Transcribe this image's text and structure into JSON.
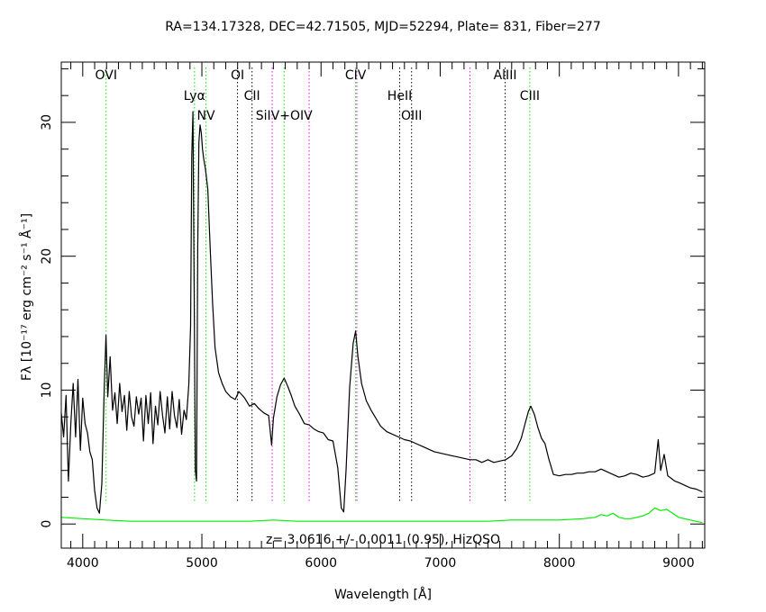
{
  "chart_data": {
    "type": "line",
    "title": "RA=134.17328, DEC=42.71505, MJD=52294, Plate=  831, Fiber=277",
    "xlabel": "Wavelength [Å]",
    "ylabel": "Fλ [10⁻¹⁷ erg cm⁻² s⁻¹ Å⁻¹]",
    "xlim": [
      3820,
      9220
    ],
    "ylim": [
      -1.8,
      34.5
    ],
    "x_ticks": [
      4000,
      5000,
      6000,
      7000,
      8000,
      9000
    ],
    "y_ticks": [
      0,
      10,
      20,
      30
    ],
    "annotation": "z=  3.0616 +/-  0.0011 (0.95), HizQSO",
    "grid": false,
    "series": [
      {
        "color": "#000000",
        "points": [
          [
            3820,
            8.3
          ],
          [
            3840,
            6.5
          ],
          [
            3860,
            9.6
          ],
          [
            3880,
            3.2
          ],
          [
            3900,
            7.5
          ],
          [
            3920,
            10.5
          ],
          [
            3940,
            6.5
          ],
          [
            3960,
            10.8
          ],
          [
            3980,
            5.5
          ],
          [
            4000,
            9.4
          ],
          [
            4020,
            7.5
          ],
          [
            4040,
            6.8
          ],
          [
            4060,
            5.4
          ],
          [
            4080,
            4.8
          ],
          [
            4100,
            2.5
          ],
          [
            4120,
            1.2
          ],
          [
            4140,
            0.8
          ],
          [
            4160,
            3.0
          ],
          [
            4180,
            10.0
          ],
          [
            4195,
            14.1
          ],
          [
            4210,
            9.5
          ],
          [
            4230,
            12.5
          ],
          [
            4250,
            8.5
          ],
          [
            4270,
            9.8
          ],
          [
            4290,
            7.5
          ],
          [
            4310,
            10.5
          ],
          [
            4330,
            8.4
          ],
          [
            4350,
            9.6
          ],
          [
            4370,
            7.0
          ],
          [
            4390,
            9.9
          ],
          [
            4410,
            8.0
          ],
          [
            4430,
            7.3
          ],
          [
            4450,
            9.5
          ],
          [
            4470,
            8.2
          ],
          [
            4490,
            9.4
          ],
          [
            4510,
            6.2
          ],
          [
            4530,
            9.6
          ],
          [
            4550,
            7.5
          ],
          [
            4570,
            9.8
          ],
          [
            4590,
            6.0
          ],
          [
            4610,
            8.8
          ],
          [
            4630,
            7.4
          ],
          [
            4650,
            9.9
          ],
          [
            4670,
            8.1
          ],
          [
            4690,
            6.8
          ],
          [
            4710,
            9.5
          ],
          [
            4730,
            7.1
          ],
          [
            4750,
            9.9
          ],
          [
            4770,
            8.1
          ],
          [
            4790,
            7.2
          ],
          [
            4810,
            9.3
          ],
          [
            4830,
            6.7
          ],
          [
            4850,
            8.5
          ],
          [
            4870,
            7.8
          ],
          [
            4890,
            10.4
          ],
          [
            4905,
            14.8
          ],
          [
            4915,
            27.5
          ],
          [
            4925,
            30.8
          ],
          [
            4935,
            18.0
          ],
          [
            4945,
            4.0
          ],
          [
            4955,
            3.2
          ],
          [
            4965,
            20.5
          ],
          [
            4975,
            28.5
          ],
          [
            4985,
            29.8
          ],
          [
            4995,
            29.2
          ],
          [
            5005,
            28.0
          ],
          [
            5015,
            27.3
          ],
          [
            5030,
            26.5
          ],
          [
            5050,
            25.0
          ],
          [
            5070,
            20.5
          ],
          [
            5090,
            16.5
          ],
          [
            5110,
            13.2
          ],
          [
            5140,
            11.3
          ],
          [
            5170,
            10.5
          ],
          [
            5200,
            9.9
          ],
          [
            5240,
            9.5
          ],
          [
            5280,
            9.3
          ],
          [
            5310,
            9.9
          ],
          [
            5330,
            9.7
          ],
          [
            5360,
            9.4
          ],
          [
            5400,
            8.8
          ],
          [
            5440,
            9.0
          ],
          [
            5480,
            8.6
          ],
          [
            5520,
            8.3
          ],
          [
            5560,
            8.1
          ],
          [
            5585,
            5.9
          ],
          [
            5600,
            7.9
          ],
          [
            5630,
            9.5
          ],
          [
            5660,
            10.4
          ],
          [
            5690,
            10.9
          ],
          [
            5720,
            10.3
          ],
          [
            5750,
            9.6
          ],
          [
            5780,
            8.8
          ],
          [
            5820,
            8.2
          ],
          [
            5860,
            7.5
          ],
          [
            5900,
            7.4
          ],
          [
            5940,
            7.1
          ],
          [
            5980,
            6.9
          ],
          [
            6020,
            6.8
          ],
          [
            6060,
            6.3
          ],
          [
            6100,
            6.2
          ],
          [
            6140,
            4.2
          ],
          [
            6170,
            1.2
          ],
          [
            6190,
            0.9
          ],
          [
            6210,
            4.0
          ],
          [
            6240,
            10.2
          ],
          [
            6270,
            13.5
          ],
          [
            6290,
            14.4
          ],
          [
            6310,
            12.5
          ],
          [
            6340,
            10.5
          ],
          [
            6380,
            9.2
          ],
          [
            6420,
            8.5
          ],
          [
            6460,
            7.9
          ],
          [
            6500,
            7.3
          ],
          [
            6550,
            6.9
          ],
          [
            6600,
            6.7
          ],
          [
            6650,
            6.5
          ],
          [
            6700,
            6.3
          ],
          [
            6750,
            6.2
          ],
          [
            6800,
            6.0
          ],
          [
            6850,
            5.8
          ],
          [
            6900,
            5.6
          ],
          [
            6950,
            5.4
          ],
          [
            7000,
            5.3
          ],
          [
            7050,
            5.2
          ],
          [
            7100,
            5.1
          ],
          [
            7150,
            5.0
          ],
          [
            7200,
            4.9
          ],
          [
            7250,
            4.8
          ],
          [
            7300,
            4.8
          ],
          [
            7350,
            4.6
          ],
          [
            7400,
            4.8
          ],
          [
            7450,
            4.6
          ],
          [
            7500,
            4.7
          ],
          [
            7550,
            4.8
          ],
          [
            7600,
            5.1
          ],
          [
            7640,
            5.6
          ],
          [
            7680,
            6.4
          ],
          [
            7710,
            7.4
          ],
          [
            7740,
            8.4
          ],
          [
            7760,
            8.8
          ],
          [
            7790,
            8.2
          ],
          [
            7820,
            7.2
          ],
          [
            7850,
            6.4
          ],
          [
            7880,
            6.0
          ],
          [
            7910,
            4.9
          ],
          [
            7950,
            3.7
          ],
          [
            8000,
            3.6
          ],
          [
            8050,
            3.7
          ],
          [
            8100,
            3.7
          ],
          [
            8150,
            3.8
          ],
          [
            8200,
            3.8
          ],
          [
            8250,
            3.9
          ],
          [
            8300,
            3.9
          ],
          [
            8350,
            4.1
          ],
          [
            8400,
            3.9
          ],
          [
            8450,
            3.7
          ],
          [
            8500,
            3.5
          ],
          [
            8550,
            3.6
          ],
          [
            8600,
            3.8
          ],
          [
            8650,
            3.7
          ],
          [
            8700,
            3.5
          ],
          [
            8750,
            3.6
          ],
          [
            8800,
            3.8
          ],
          [
            8830,
            6.3
          ],
          [
            8850,
            4.0
          ],
          [
            8880,
            5.2
          ],
          [
            8910,
            3.6
          ],
          [
            8940,
            3.4
          ],
          [
            8970,
            3.2
          ],
          [
            9000,
            3.1
          ],
          [
            9050,
            2.9
          ],
          [
            9100,
            2.7
          ],
          [
            9150,
            2.6
          ],
          [
            9200,
            2.4
          ]
        ]
      },
      {
        "color": "#00ee00",
        "points": [
          [
            3820,
            0.5
          ],
          [
            4000,
            0.4
          ],
          [
            4200,
            0.3
          ],
          [
            4400,
            0.2
          ],
          [
            4600,
            0.2
          ],
          [
            4800,
            0.2
          ],
          [
            5000,
            0.2
          ],
          [
            5200,
            0.2
          ],
          [
            5400,
            0.2
          ],
          [
            5600,
            0.3
          ],
          [
            5800,
            0.2
          ],
          [
            6000,
            0.2
          ],
          [
            6200,
            0.2
          ],
          [
            6400,
            0.2
          ],
          [
            6600,
            0.2
          ],
          [
            6800,
            0.2
          ],
          [
            7000,
            0.2
          ],
          [
            7200,
            0.2
          ],
          [
            7400,
            0.2
          ],
          [
            7600,
            0.3
          ],
          [
            7800,
            0.3
          ],
          [
            8000,
            0.3
          ],
          [
            8200,
            0.4
          ],
          [
            8300,
            0.5
          ],
          [
            8350,
            0.7
          ],
          [
            8400,
            0.6
          ],
          [
            8450,
            0.8
          ],
          [
            8500,
            0.5
          ],
          [
            8550,
            0.4
          ],
          [
            8600,
            0.4
          ],
          [
            8650,
            0.5
          ],
          [
            8700,
            0.6
          ],
          [
            8750,
            0.8
          ],
          [
            8800,
            1.2
          ],
          [
            8850,
            1.0
          ],
          [
            8900,
            1.1
          ],
          [
            8950,
            0.8
          ],
          [
            9000,
            0.5
          ],
          [
            9100,
            0.3
          ],
          [
            9200,
            0.1
          ]
        ]
      }
    ],
    "lines": [
      {
        "label": "OVI",
        "x": 4196,
        "color": "#00ee00",
        "row": 0
      },
      {
        "label": "Lyα",
        "x": 4938,
        "color": "#00ee00",
        "row": 1
      },
      {
        "label": "NV",
        "x": 5034,
        "color": "#00ee00",
        "row": 2
      },
      {
        "label": "OI",
        "x": 5299,
        "color": "#000000",
        "row": 0
      },
      {
        "label": "CII",
        "x": 5421,
        "color": "#000000",
        "row": 1
      },
      {
        "label": "",
        "x": 5590,
        "color": "#ff00ff",
        "row": -1
      },
      {
        "label": "SiIV+OIV",
        "x": 5690,
        "color": "#00ee00",
        "row": 2
      },
      {
        "label": "",
        "x": 5900,
        "color": "#ff00ff",
        "row": -1
      },
      {
        "label": "CIV",
        "x": 6290,
        "color": "#00ee00",
        "row": 0
      },
      {
        "label": "",
        "x": 6300,
        "color": "#ff00ff",
        "row": -1
      },
      {
        "label": "HeII",
        "x": 6660,
        "color": "#000000",
        "row": 1
      },
      {
        "label": "OIII",
        "x": 6760,
        "color": "#000000",
        "row": 2
      },
      {
        "label": "",
        "x": 7250,
        "color": "#ff00ff",
        "row": -1
      },
      {
        "label": "AlIII",
        "x": 7545,
        "color": "#000000",
        "row": 0
      },
      {
        "label": "CIII",
        "x": 7752,
        "color": "#00ee00",
        "row": 1
      }
    ]
  }
}
